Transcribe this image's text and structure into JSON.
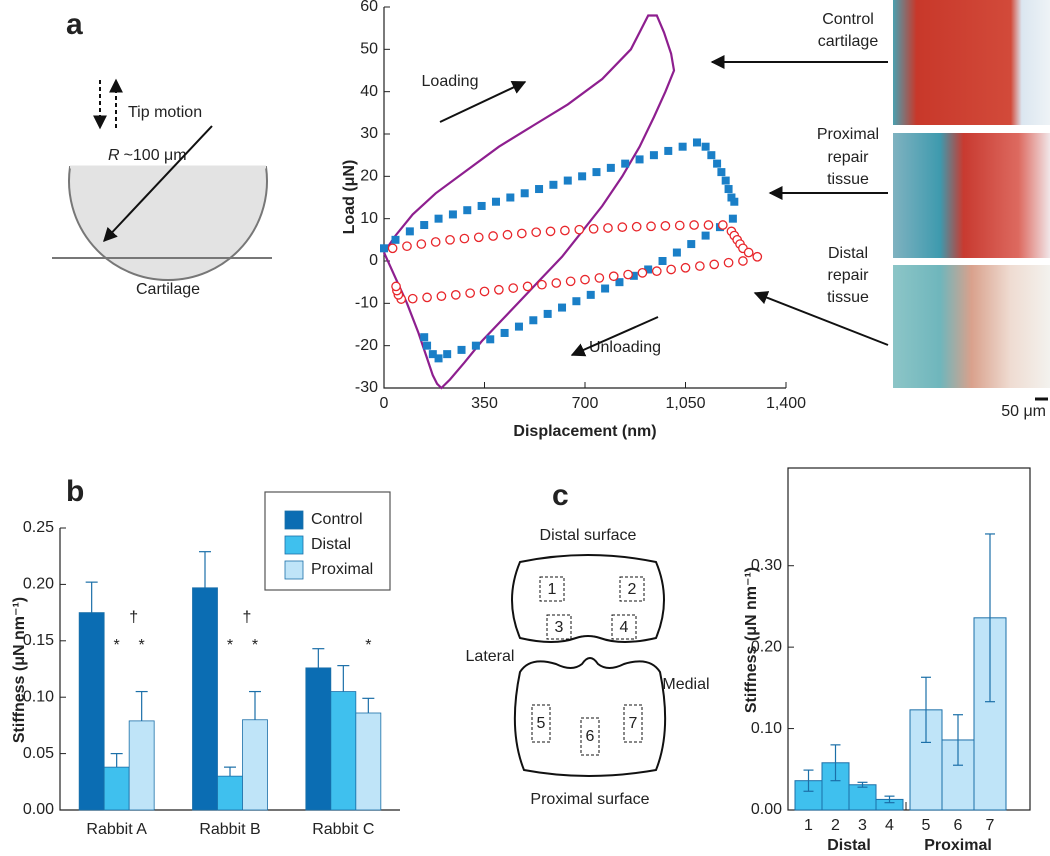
{
  "panel_labels": [
    "a",
    "b",
    "c"
  ],
  "diagram_a": {
    "tip_motion": "Tip motion",
    "radius_symbol": "R",
    "radius_value": "~100 μm",
    "surface": "Cartilage"
  },
  "micrographs": [
    {
      "lines": [
        "Control",
        "cartilage"
      ]
    },
    {
      "lines": [
        "Proximal",
        "repair",
        "tissue"
      ]
    },
    {
      "lines": [
        "Distal",
        "repair",
        "tissue"
      ]
    }
  ],
  "scale_bar": "50 μm",
  "diagram_c": {
    "top": "Distal surface",
    "bottom": "Proximal surface",
    "left": "Lateral",
    "right": "Medial",
    "sites": [
      "1",
      "2",
      "3",
      "4",
      "5",
      "6",
      "7"
    ]
  },
  "chart_data": [
    {
      "type": "line",
      "xlabel": "Displacement (nm)",
      "ylabel": "Load (μN)",
      "xlim": [
        0,
        1400
      ],
      "xticks": [
        0,
        350,
        700,
        {
          "value": 1050,
          "label": "1,050"
        },
        {
          "value": 1400,
          "label": "1,400"
        }
      ],
      "ylim": [
        -30,
        60
      ],
      "yticks": [
        -30,
        -20,
        -10,
        0,
        10,
        20,
        30,
        40,
        50,
        60
      ],
      "annotations": [
        {
          "text": "Loading"
        },
        {
          "text": "Unloading"
        }
      ],
      "series": [
        {
          "color": "#8e1f8f",
          "marker": "none",
          "x": [
            0,
            40,
            100,
            180,
            280,
            400,
            520,
            640,
            760,
            860,
            920,
            950,
            975,
            1000,
            1010,
            980,
            940,
            890,
            830,
            760,
            690,
            620,
            550,
            480,
            410,
            340,
            280,
            230,
            200,
            185,
            170,
            150,
            120,
            80,
            40,
            0
          ],
          "values": [
            2,
            6,
            11,
            16,
            21,
            27,
            32,
            37,
            43,
            50,
            58,
            58,
            54,
            49,
            45,
            40,
            34,
            27,
            20,
            13,
            7,
            1,
            -4,
            -9,
            -14,
            -19,
            -24,
            -28,
            -30,
            -29,
            -27,
            -23,
            -17,
            -10,
            -4,
            2
          ]
        },
        {
          "color": "#1a7fc7",
          "marker": "square",
          "x": [
            0,
            40,
            90,
            140,
            190,
            240,
            290,
            340,
            390,
            440,
            490,
            540,
            590,
            640,
            690,
            740,
            790,
            840,
            890,
            940,
            990,
            1040,
            1090,
            1120,
            1140,
            1160,
            1175,
            1190,
            1200,
            1210,
            1220,
            1215,
            1170,
            1120,
            1070,
            1020,
            970,
            920,
            870,
            820,
            770,
            720,
            670,
            620,
            570,
            520,
            470,
            420,
            370,
            320,
            270,
            220,
            190,
            170,
            150,
            140
          ],
          "values": [
            3,
            5,
            7,
            8.5,
            10,
            11,
            12,
            13,
            14,
            15,
            16,
            17,
            18,
            19,
            20,
            21,
            22,
            23,
            24,
            25,
            26,
            27,
            28,
            27,
            25,
            23,
            21,
            19,
            17,
            15,
            14,
            10,
            8,
            6,
            4,
            2,
            0,
            -2,
            -3.5,
            -5,
            -6.5,
            -8,
            -9.5,
            -11,
            -12.5,
            -14,
            -15.5,
            -17,
            -18.5,
            -20,
            -21,
            -22,
            -23,
            -22,
            -20,
            -18
          ]
        },
        {
          "color": "#e8262b",
          "marker": "circle-open",
          "x": [
            30,
            80,
            130,
            180,
            230,
            280,
            330,
            380,
            430,
            480,
            530,
            580,
            630,
            680,
            730,
            780,
            830,
            880,
            930,
            980,
            1030,
            1080,
            1130,
            1180,
            1210,
            1220,
            1230,
            1240,
            1250,
            1270,
            1300,
            1250,
            1200,
            1150,
            1100,
            1050,
            1000,
            950,
            900,
            850,
            800,
            750,
            700,
            650,
            600,
            550,
            500,
            450,
            400,
            350,
            300,
            250,
            200,
            150,
            100,
            60,
            50,
            45,
            42
          ],
          "values": [
            3,
            3.5,
            4,
            4.5,
            5,
            5.3,
            5.6,
            5.9,
            6.2,
            6.5,
            6.8,
            7,
            7.2,
            7.4,
            7.6,
            7.8,
            8,
            8.1,
            8.2,
            8.3,
            8.4,
            8.5,
            8.5,
            8.5,
            7,
            6,
            5,
            4,
            3,
            2,
            1,
            0,
            -0.4,
            -0.8,
            -1.2,
            -1.6,
            -2,
            -2.4,
            -2.8,
            -3.2,
            -3.6,
            -4,
            -4.4,
            -4.8,
            -5.2,
            -5.6,
            -6,
            -6.4,
            -6.8,
            -7.2,
            -7.6,
            -8,
            -8.3,
            -8.6,
            -8.9,
            -9,
            -8,
            -7,
            -6
          ]
        }
      ]
    },
    {
      "type": "bar",
      "ylabel": "Stiffness (μN nm⁻¹)",
      "categories": [
        "Rabbit A",
        "Rabbit B",
        "Rabbit C"
      ],
      "ylim": [
        0,
        0.25
      ],
      "yticks": [
        {
          "value": 0,
          "label": "0.00"
        },
        0.05,
        {
          "value": 0.1,
          "label": "0.10"
        },
        0.15,
        {
          "value": 0.2,
          "label": "0.20"
        },
        0.25
      ],
      "legend": "upper right",
      "series": [
        {
          "name": "Control",
          "color": "#0b6db3",
          "values": [
            0.175,
            0.197,
            0.126
          ],
          "errors": [
            0.027,
            0.032,
            0.017
          ]
        },
        {
          "name": "Distal",
          "color": "#3fc0ee",
          "values": [
            0.038,
            0.03,
            0.105
          ],
          "errors": [
            0.012,
            0.008,
            0.023
          ],
          "labels": [
            "*",
            "*",
            null
          ]
        },
        {
          "name": "Proximal",
          "color": "#bfe4f8",
          "values": [
            0.079,
            0.08,
            0.086
          ],
          "errors": [
            0.026,
            0.025,
            0.013
          ],
          "labels": [
            "*",
            "*",
            "*"
          ],
          "secondary_labels": [
            "†",
            "†",
            null
          ]
        }
      ]
    },
    {
      "type": "bar",
      "ylabel": "Stiffness (μN nm⁻¹)",
      "ylim": [
        0,
        0.42
      ],
      "yticks": [
        {
          "value": 0,
          "label": "0.00"
        },
        {
          "value": 0.1,
          "label": "0.10"
        },
        {
          "value": 0.2,
          "label": "0.20"
        },
        {
          "value": 0.3,
          "label": "0.30"
        }
      ],
      "groups": [
        {
          "name": "Distal",
          "color": "#3fc0ee",
          "categories": [
            "1",
            "2",
            "3",
            "4"
          ],
          "values": [
            0.036,
            0.058,
            0.031,
            0.013
          ],
          "errors": [
            0.013,
            0.022,
            0.003,
            0.004
          ]
        },
        {
          "name": "Proximal",
          "color": "#bfe4f8",
          "categories": [
            "5",
            "6",
            "7"
          ],
          "values": [
            0.123,
            0.086,
            0.236
          ],
          "errors": [
            0.04,
            0.031,
            0.103
          ]
        }
      ]
    }
  ]
}
